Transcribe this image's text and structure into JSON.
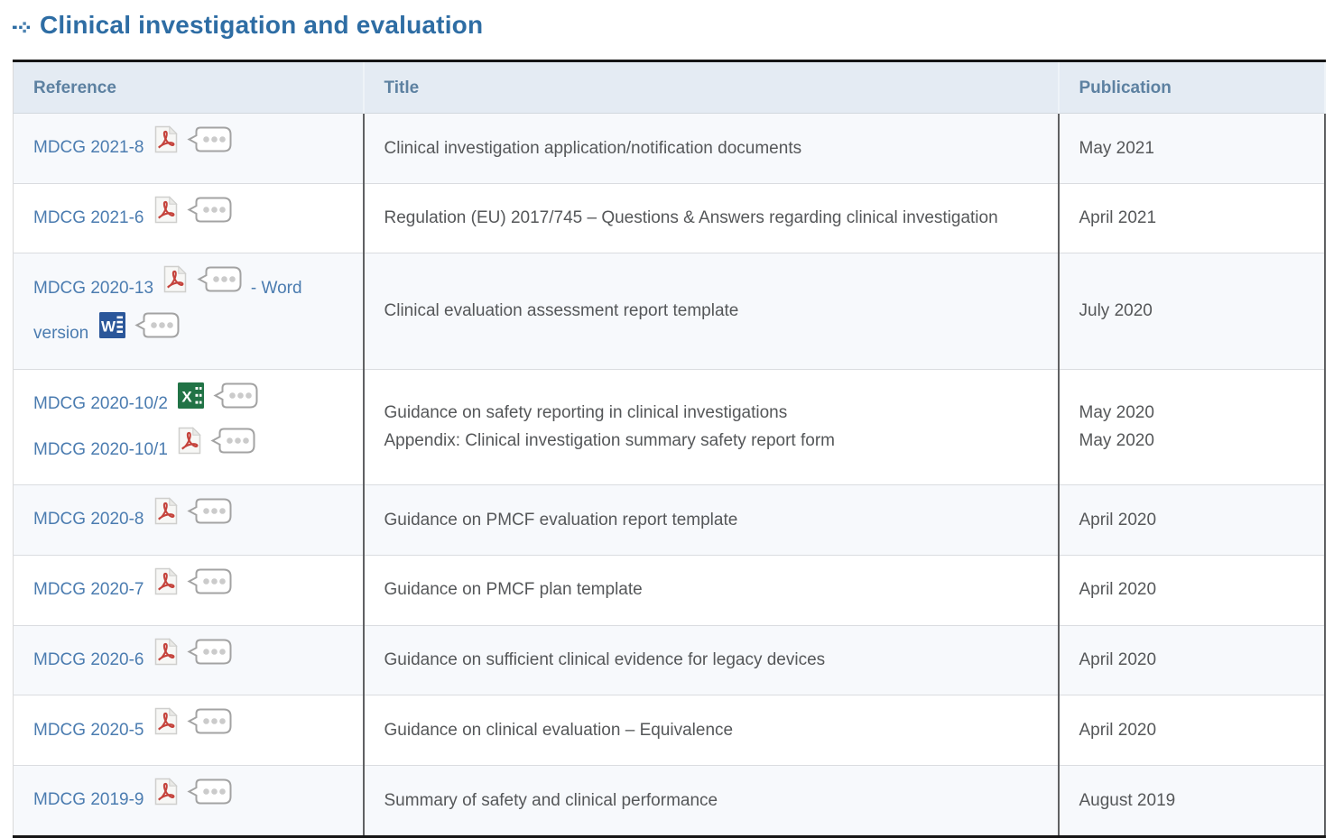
{
  "page": {
    "heading": "Clinical investigation and evaluation"
  },
  "colors": {
    "accent_blue": "#2e6da4",
    "link_blue": "#4b7cb0",
    "header_text": "#5d81a1",
    "header_bg": "#e4ebf3",
    "alt_row_bg": "#f7f9fc",
    "body_text": "#555759",
    "pdf_red": "#c5433c",
    "word_blue": "#2b579a",
    "excel_green": "#217346",
    "dark_border": "#161616"
  },
  "icons": {
    "heading_bullet": "dotted-arrow-icon",
    "pdf": "pdf-file-icon",
    "word": "word-file-icon",
    "excel": "excel-file-icon",
    "bubble": "more-options-bubble"
  },
  "table": {
    "headers": [
      {
        "label": "Reference"
      },
      {
        "label": "Title"
      },
      {
        "label": "Publication"
      }
    ],
    "rows": [
      {
        "reference": [
          {
            "t": "link",
            "label": "MDCG 2021-8"
          },
          {
            "t": "icon",
            "icon": "pdf"
          },
          {
            "t": "bubble"
          }
        ],
        "title_lines": [
          "Clinical investigation application/notification documents"
        ],
        "publication_lines": [
          "May 2021"
        ]
      },
      {
        "reference": [
          {
            "t": "link",
            "label": "MDCG 2021-6"
          },
          {
            "t": "icon",
            "icon": "pdf"
          },
          {
            "t": "bubble"
          }
        ],
        "title_lines": [
          "Regulation (EU) 2017/745 – Questions & Answers regarding clinical investigation"
        ],
        "publication_lines": [
          "April 2021"
        ]
      },
      {
        "reference": [
          {
            "t": "link",
            "label": "MDCG 2020-13"
          },
          {
            "t": "icon",
            "icon": "pdf"
          },
          {
            "t": "bubble"
          },
          {
            "t": "link",
            "label": "- Word version"
          },
          {
            "t": "icon",
            "icon": "word"
          },
          {
            "t": "bubble"
          }
        ],
        "title_lines": [
          "Clinical evaluation assessment report template"
        ],
        "publication_lines": [
          "July 2020"
        ]
      },
      {
        "reference": [
          {
            "t": "link",
            "label": "MDCG 2020-10/2"
          },
          {
            "t": "icon",
            "icon": "excel"
          },
          {
            "t": "bubble"
          },
          {
            "t": "br"
          },
          {
            "t": "link",
            "label": "MDCG 2020-10/1"
          },
          {
            "t": "icon",
            "icon": "pdf"
          },
          {
            "t": "bubble"
          }
        ],
        "title_lines": [
          "Guidance on safety reporting in clinical investigations",
          "Appendix: Clinical investigation summary safety report form"
        ],
        "publication_lines": [
          "May 2020",
          "May 2020"
        ]
      },
      {
        "reference": [
          {
            "t": "link",
            "label": "MDCG 2020-8"
          },
          {
            "t": "icon",
            "icon": "pdf"
          },
          {
            "t": "bubble"
          }
        ],
        "title_lines": [
          "Guidance on PMCF evaluation report template"
        ],
        "publication_lines": [
          "April 2020"
        ]
      },
      {
        "reference": [
          {
            "t": "link",
            "label": "MDCG 2020-7"
          },
          {
            "t": "icon",
            "icon": "pdf"
          },
          {
            "t": "bubble"
          }
        ],
        "title_lines": [
          "Guidance on PMCF plan template"
        ],
        "publication_lines": [
          "April 2020"
        ]
      },
      {
        "reference": [
          {
            "t": "link",
            "label": "MDCG 2020-6"
          },
          {
            "t": "icon",
            "icon": "pdf"
          },
          {
            "t": "bubble"
          }
        ],
        "title_lines": [
          "Guidance on sufficient clinical evidence for legacy devices"
        ],
        "publication_lines": [
          "April 2020"
        ]
      },
      {
        "reference": [
          {
            "t": "link",
            "label": "MDCG 2020-5"
          },
          {
            "t": "icon",
            "icon": "pdf"
          },
          {
            "t": "bubble"
          }
        ],
        "title_lines": [
          "Guidance on clinical evaluation – Equivalence"
        ],
        "publication_lines": [
          "April 2020"
        ]
      },
      {
        "reference": [
          {
            "t": "link",
            "label": "MDCG 2019-9"
          },
          {
            "t": "icon",
            "icon": "pdf"
          },
          {
            "t": "bubble"
          }
        ],
        "title_lines": [
          "Summary of safety and clinical performance"
        ],
        "publication_lines": [
          "August 2019"
        ]
      }
    ]
  }
}
